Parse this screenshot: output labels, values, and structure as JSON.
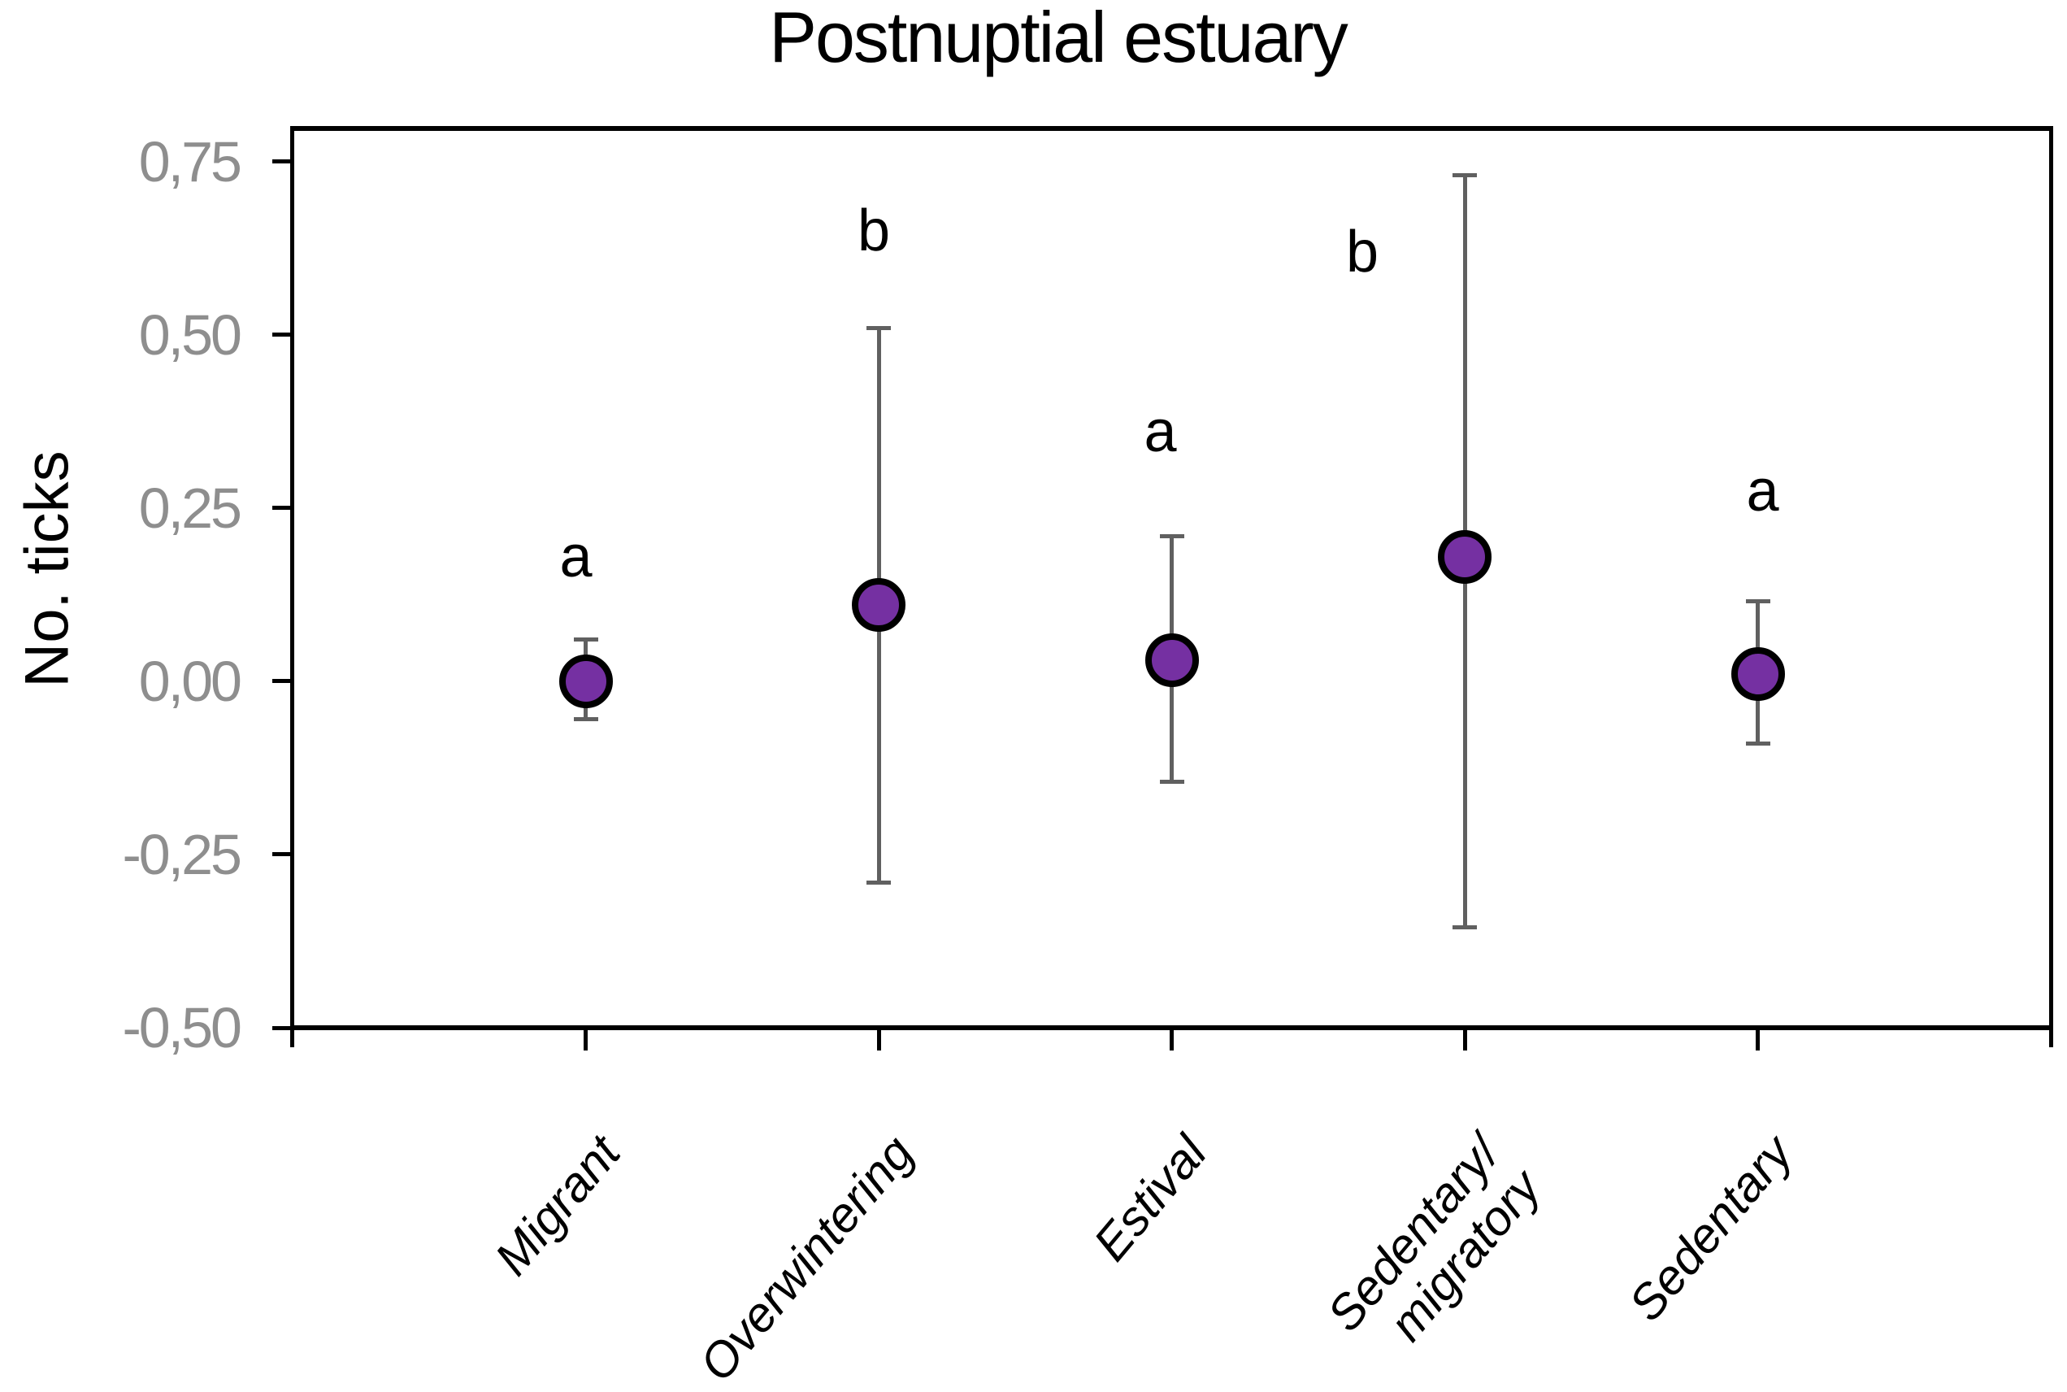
{
  "chart_data": {
    "type": "scatter",
    "title": "Postnuptial estuary",
    "xlabel": "",
    "ylabel": "No. ticks",
    "grid": false,
    "legend": "none",
    "ylim": [
      -0.5,
      0.798
    ],
    "decimal_separator": ",",
    "y_ticks": [
      {
        "value": 0.75,
        "label": "0,75"
      },
      {
        "value": 0.5,
        "label": "0,50"
      },
      {
        "value": 0.25,
        "label": "0,25"
      },
      {
        "value": 0.0,
        "label": "0,00"
      },
      {
        "value": -0.25,
        "label": "-0,25"
      },
      {
        "value": -0.5,
        "label": "-0,50"
      }
    ],
    "categories": [
      "Migrant",
      "Overwintering",
      "Estival",
      "Sedentary/migratory",
      "Sedentary"
    ],
    "points": [
      {
        "category": "Migrant",
        "label_lines": [
          "Migrant"
        ],
        "mean": 0.0,
        "ci_low": -0.055,
        "ci_high": 0.06,
        "sig_letter": "a",
        "letter_y": 0.18,
        "letter_dx": -12
      },
      {
        "category": "Overwintering",
        "label_lines": [
          "Overwintering"
        ],
        "mean": 0.11,
        "ci_low": -0.29,
        "ci_high": 0.51,
        "sig_letter": "b",
        "letter_y": 0.65,
        "letter_dx": -6
      },
      {
        "category": "Estival",
        "label_lines": [
          "Estival"
        ],
        "mean": 0.03,
        "ci_low": -0.145,
        "ci_high": 0.21,
        "sig_letter": "a",
        "letter_y": 0.36,
        "letter_dx": -14
      },
      {
        "category": "Sedentary/migratory",
        "label_lines": [
          "Sedentary/",
          "migratory"
        ],
        "mean": 0.18,
        "ci_low": -0.355,
        "ci_high": 0.73,
        "sig_letter": "b",
        "letter_y": 0.62,
        "letter_dx": -126
      },
      {
        "category": "Sedentary",
        "label_lines": [
          "Sedentary"
        ],
        "mean": 0.01,
        "ci_low": -0.09,
        "ci_high": 0.115,
        "sig_letter": "a",
        "letter_y": 0.275,
        "letter_dx": 6
      }
    ],
    "colors": {
      "marker_fill": "#7530A2",
      "marker_stroke": "#000000",
      "error_bar": "#606060",
      "axis": "#000000",
      "tick_label": "#8E8E8E",
      "text": "#000000"
    }
  }
}
